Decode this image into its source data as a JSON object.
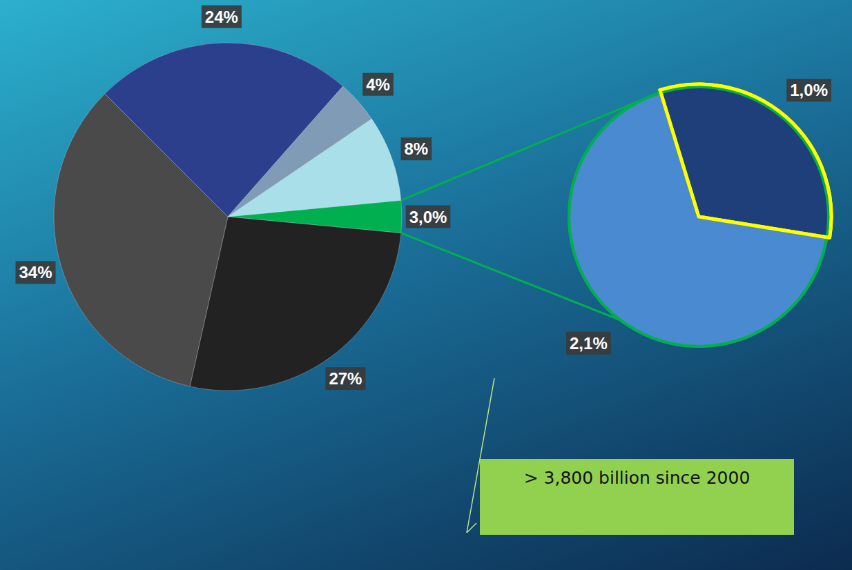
{
  "chart_data": [
    {
      "type": "pie",
      "values": [
        3.0,
        27,
        34,
        24,
        4,
        8
      ],
      "value_labels": [
        "3,0%",
        "27%",
        "34%",
        "24%",
        "4%",
        "8%"
      ],
      "colors": [
        "#00b050",
        "#222222",
        "#4a4a4a",
        "#2b3f8c",
        "#7f9bb5",
        "#a9dfe9"
      ],
      "data_labels": true
    },
    {
      "type": "pie",
      "values": [
        1.0,
        2.1
      ],
      "value_labels": [
        "1,0%",
        "2,1%"
      ],
      "colors": [
        "#1f3f7a",
        "#4a8ad0"
      ],
      "data_labels": true,
      "annotation": "> 3,800 billion since 2000"
    }
  ]
}
